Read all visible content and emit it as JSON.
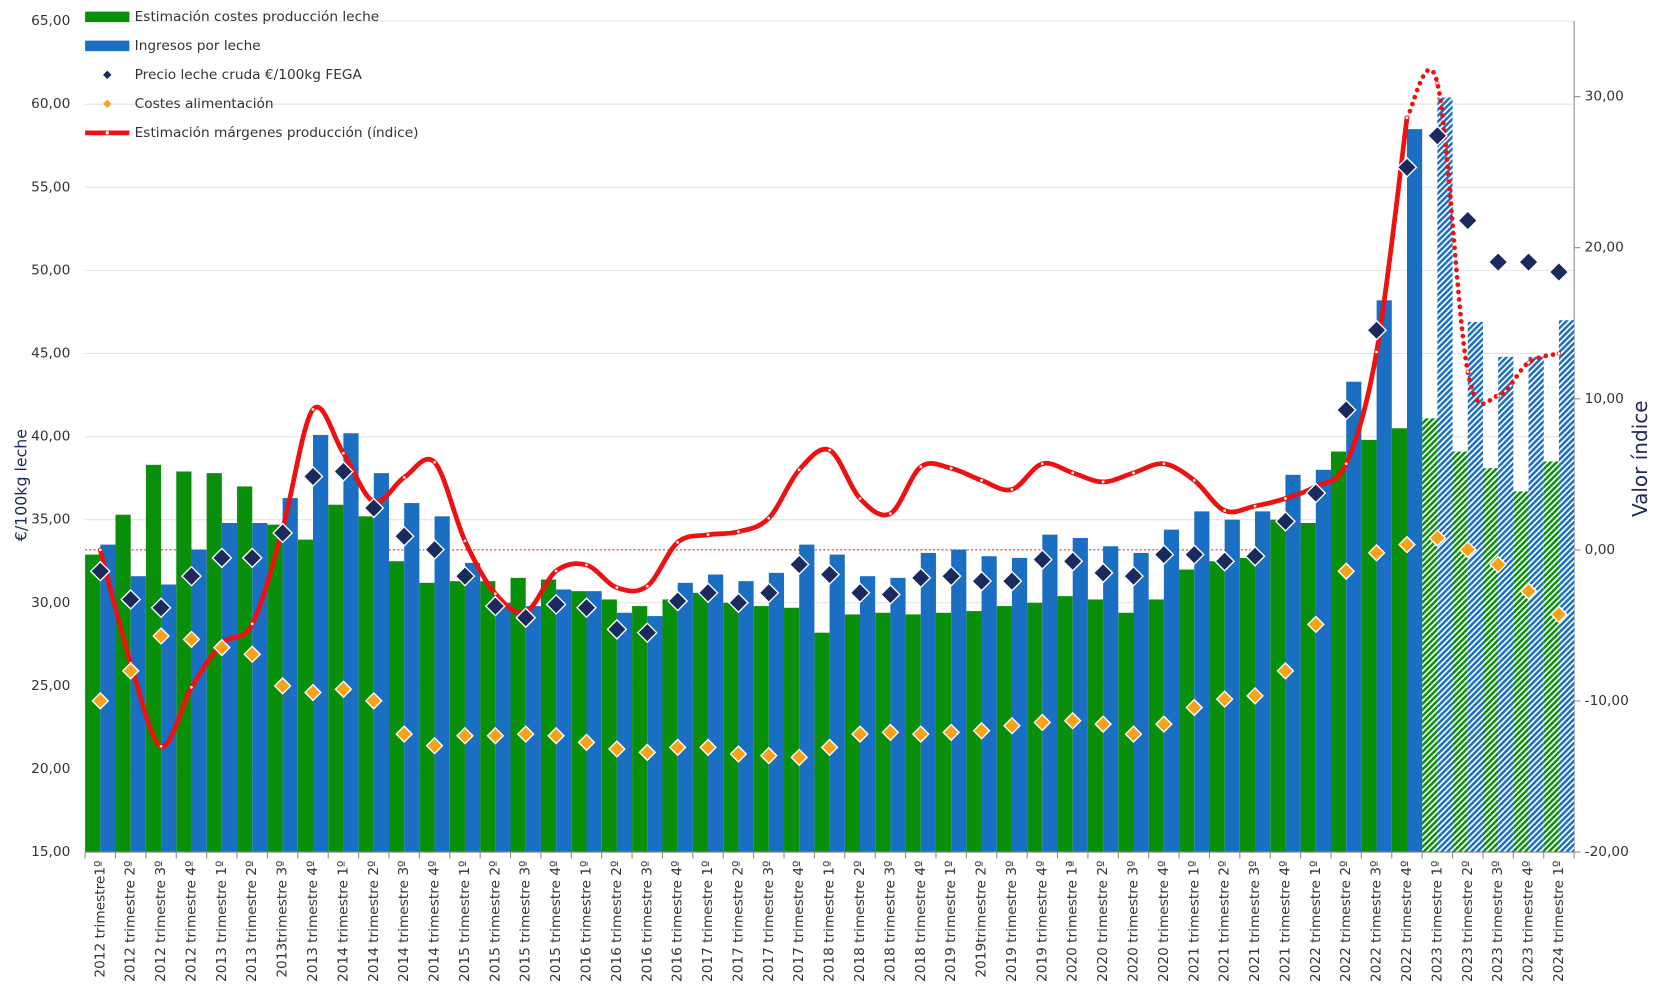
{
  "chart_data": {
    "type": "combo",
    "y_label": "€/100kg leche",
    "y2_label": "Valor índice",
    "categories": [
      "2012 trimestre1º",
      "2012 trimestre 2º",
      "2012 trimestre 3º",
      "2012 trimestre 4º",
      "2013 trimestre 1º",
      "2013 trimestre 2º",
      "2013trimestre 3º",
      "2013 trimestre 4º",
      "2014 trimestre 1º",
      "2014 trimestre 2º",
      "2014 trimestre 3º",
      "2014 trimestre 4º",
      "2015 trimestre 1º",
      "2015 trimestre 2º",
      "2015 trimestre 3º",
      "2015 trimestre 4º",
      "2016 trimestre 1º",
      "2016 trimestre 2º",
      "2016 trimestre 3º",
      "2016 trimestre 4º",
      "2017 trimestre 1º",
      "2017 trimestre 2º",
      "2017 trimestre 3º",
      "2017 trimestre 4º",
      "2018 trimestre 1º",
      "2018 trimestre 2º",
      "2018 trimestre 3º",
      "2018 trimestre 4º",
      "2019 trimestre 1º",
      "2019trimestre 2º",
      "2019 trimestre 3º",
      "2019 trimestre 4º",
      "2020 trimestre 1ª",
      "2020 trimestre 2º",
      "2020 trimestre 3º",
      "2020 trimestre 4º",
      "2021 trimestre 1º",
      "2021 trimestre 2º",
      "2021 trimestre 3º",
      "2021 trimestre 4º",
      "2022 trimestre 1º",
      "2022 trimestre 2º",
      "2022 trimestre 3º",
      "2022 trimestre 4º",
      "2023 trimestre 1º",
      "2023 trimestre 2º",
      "2023 trimestre 3º",
      "2023 trimestre 4º",
      "2024 trimestre 1º"
    ],
    "series": [
      {
        "name": "Estimación costes producción leche",
        "mark": "bar",
        "color": "#0a8f0a",
        "values": [
          32.9,
          35.3,
          38.3,
          37.9,
          37.8,
          37.0,
          34.7,
          33.8,
          35.9,
          35.2,
          32.5,
          31.2,
          31.3,
          31.3,
          31.5,
          31.4,
          30.7,
          30.2,
          29.8,
          30.2,
          30.6,
          30.0,
          29.8,
          29.7,
          28.2,
          29.3,
          29.4,
          29.3,
          29.4,
          29.5,
          29.8,
          30.0,
          30.4,
          30.2,
          29.4,
          30.2,
          32.0,
          32.5,
          32.7,
          35.0,
          34.8,
          39.1,
          39.8,
          40.5,
          41.1,
          39.1,
          38.1,
          36.7,
          38.5
        ]
      },
      {
        "name": "Ingresos por leche",
        "mark": "bar",
        "color": "#1b6fc2",
        "values": [
          33.5,
          31.6,
          31.1,
          33.2,
          34.8,
          34.8,
          36.3,
          40.1,
          40.2,
          37.8,
          36.0,
          35.2,
          32.4,
          30.0,
          29.8,
          30.8,
          30.7,
          29.4,
          29.2,
          31.2,
          31.7,
          31.3,
          31.8,
          33.5,
          32.9,
          31.6,
          31.5,
          33.0,
          33.2,
          32.8,
          32.7,
          34.1,
          33.9,
          33.4,
          33.0,
          34.4,
          35.5,
          35.0,
          35.5,
          37.7,
          38.0,
          43.3,
          48.2,
          58.5,
          60.4,
          46.9,
          44.8,
          44.8,
          47.0
        ]
      },
      {
        "name": "Precio leche cruda €/100kg FEGA",
        "mark": "diamond",
        "color": "#1b2a5e",
        "values": [
          31.9,
          30.2,
          29.7,
          31.6,
          32.7,
          32.7,
          34.2,
          37.6,
          37.9,
          35.7,
          34.0,
          33.2,
          31.6,
          29.8,
          29.1,
          29.9,
          29.7,
          28.4,
          28.2,
          30.1,
          30.6,
          30.0,
          30.6,
          32.3,
          31.7,
          30.6,
          30.5,
          31.5,
          31.6,
          31.3,
          31.3,
          32.6,
          32.5,
          31.8,
          31.6,
          32.9,
          32.9,
          32.5,
          32.8,
          34.9,
          36.6,
          41.6,
          46.4,
          56.2,
          58.1,
          53.0,
          50.5,
          50.5,
          49.9
        ]
      },
      {
        "name": "Costes alimentación",
        "mark": "diamond-small",
        "color": "#f7a21b",
        "values": [
          24.1,
          25.9,
          28.0,
          27.8,
          27.3,
          26.9,
          25.0,
          24.6,
          24.8,
          24.1,
          22.1,
          21.4,
          22.0,
          22.0,
          22.1,
          22.0,
          21.6,
          21.2,
          21.0,
          21.3,
          21.3,
          20.9,
          20.8,
          20.7,
          21.3,
          22.1,
          22.2,
          22.1,
          22.2,
          22.3,
          22.6,
          22.8,
          22.9,
          22.7,
          22.1,
          22.7,
          23.7,
          24.2,
          24.4,
          25.9,
          28.7,
          31.9,
          33.0,
          33.5,
          33.9,
          33.2,
          32.3,
          30.7,
          29.3
        ]
      },
      {
        "name": "Estimación márgenes producción (índice)",
        "mark": "line",
        "color": "#ee1111",
        "axis": "y2",
        "values": [
          0,
          -7.5,
          -13.0,
          -9.1,
          -6.2,
          -4.9,
          1.4,
          9.3,
          6.4,
          3.2,
          4.8,
          5.8,
          0.6,
          -2.9,
          -4.1,
          -1.4,
          -1.0,
          -2.5,
          -2.4,
          0.5,
          1.0,
          1.2,
          2.1,
          5.3,
          6.6,
          3.4,
          2.4,
          5.5,
          5.4,
          4.6,
          4.0,
          5.7,
          5.1,
          4.5,
          5.1,
          5.7,
          4.6,
          2.6,
          2.9,
          3.4,
          4.2,
          5.7,
          13.1,
          28.6,
          30.9,
          11.8,
          10.2,
          12.4,
          13.0
        ]
      }
    ],
    "hatch_from": 44,
    "ylim": [
      15,
      65
    ],
    "yticks": [
      {
        "value": 15,
        "label": "15,00"
      },
      {
        "value": 20,
        "label": "20,00"
      },
      {
        "value": 25,
        "label": "25,00"
      },
      {
        "value": 30,
        "label": "30,00"
      },
      {
        "value": 35,
        "label": "35,00"
      },
      {
        "value": 40,
        "label": "40,00"
      },
      {
        "value": 45,
        "label": "45,00"
      },
      {
        "value": 50,
        "label": "50,00"
      },
      {
        "value": 55,
        "label": "55,00"
      },
      {
        "value": 60,
        "label": "60,00"
      },
      {
        "value": 65,
        "label": "65,00"
      }
    ],
    "y2lim": [
      -20,
      35
    ],
    "y2ticks": [
      {
        "value": -20,
        "label": "-20,00"
      },
      {
        "value": -10,
        "label": "-10,00"
      },
      {
        "value": 0,
        "label": "0,00"
      },
      {
        "value": 10,
        "label": "10,00"
      },
      {
        "value": 20,
        "label": "20,00"
      },
      {
        "value": 30,
        "label": "30,00"
      }
    ],
    "grid": true,
    "legend": "top-left"
  }
}
